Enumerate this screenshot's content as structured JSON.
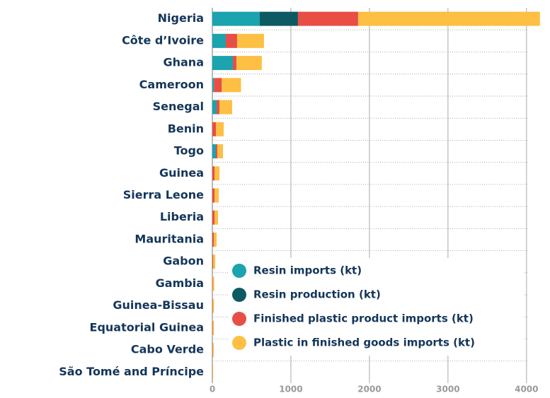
{
  "chart_data": {
    "type": "stacked-bar-horizontal",
    "categories": [
      "Nigeria",
      "Côte d’Ivoire",
      "Ghana",
      "Cameroon",
      "Senegal",
      "Benin",
      "Togo",
      "Guinea",
      "Sierra Leone",
      "Liberia",
      "Mauritania",
      "Gabon",
      "Gambia",
      "Guinea-Bissau",
      "Equatorial Guinea",
      "Cabo Verde",
      "São Tomé and Príncipe"
    ],
    "series": [
      {
        "name": "Resin imports (kt)",
        "color": "#1ba3ae",
        "values": [
          604,
          171,
          261,
          20,
          54,
          0,
          45,
          0,
          0,
          0,
          0,
          0,
          0,
          0,
          0,
          0,
          0
        ]
      },
      {
        "name": "Resin production (kt)",
        "color": "#0d5a62",
        "values": [
          486,
          0,
          0,
          0,
          0,
          0,
          0,
          0,
          0,
          0,
          0,
          0,
          0,
          0,
          0,
          0,
          0
        ]
      },
      {
        "name": "Finished plastic product imports (kt)",
        "color": "#e84e45",
        "values": [
          766,
          144,
          45,
          100,
          36,
          45,
          18,
          27,
          27,
          27,
          18,
          9,
          5,
          5,
          5,
          5,
          2
        ]
      },
      {
        "name": "Plastic in finished goods imports (kt)",
        "color": "#fdbf44",
        "values": [
          2315,
          342,
          324,
          245,
          162,
          99,
          72,
          63,
          54,
          45,
          36,
          27,
          18,
          15,
          15,
          12,
          8
        ]
      }
    ],
    "xlim": [
      0,
      4200
    ],
    "xticks": [
      0,
      1000,
      2000,
      3000,
      4000
    ],
    "grid": true
  }
}
